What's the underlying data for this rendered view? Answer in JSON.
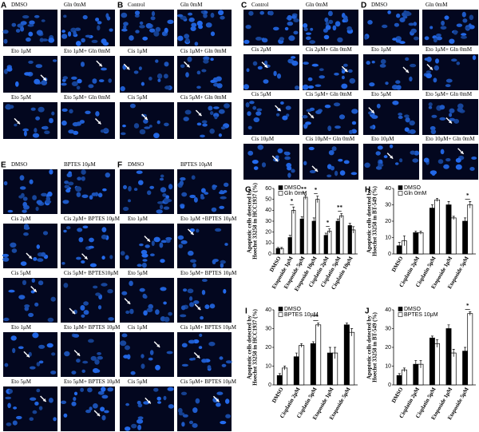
{
  "figure": {
    "image_panels": [
      {
        "letter": "A",
        "labels": [
          "DMSO",
          "Gln 0mM",
          "Eto 1μM",
          "Eto 1μM+ Gln 0mM",
          "Eto 5μM",
          "Eto 5μM+ Gln 0mM"
        ]
      },
      {
        "letter": "B",
        "labels": [
          "Control",
          "Gln 0mM",
          "Cis 1μM",
          "Cis 1μM+ Gln 0mM",
          "Cis 5μM",
          "Cis 5μM+ Gln 0mM"
        ]
      },
      {
        "letter": "C",
        "labels": [
          "Control",
          "Gln 0mM",
          "Cis 2μM",
          "Cis 2μM+ Gln 0mM",
          "Cis 5μM",
          "Cis 5μM+ Gln 0mM",
          "Cis 10μM",
          "Cis 10μM+ Gln 0mM"
        ]
      },
      {
        "letter": "D",
        "labels": [
          "DMSO",
          "Gln 0mM",
          "Eto 1μM",
          "Eto 1μM+ Gln 0mM",
          "Eto 5μM",
          "Eto 5μM+ Gln 0mM",
          "Eto 10μM",
          "Eto 10μM+ Gln 0mM"
        ]
      },
      {
        "letter": "E",
        "labels": [
          "DMSO",
          "BPTES 10μM",
          "Cis 2μM",
          "Cis 2μM+ BPTES 10μM",
          "Cis 5μM",
          "Cis 5μM+ BPTES10μM",
          "Eto 1μM",
          "Eto 1μM+ BPTES 10μM",
          "Eto 5μM",
          "Eto 5μM+ BPTES 10μM"
        ]
      },
      {
        "letter": "F",
        "labels": [
          "DMSO",
          "BPTES 10μM",
          "Eto 1μM",
          "Eto 1μM +BPTES 10μM",
          "Eto 5μM",
          "Eto 5μM+ BPTES 10μM",
          "Cis 1μM",
          "Cis 1μM+ BPTES 10μM",
          "Cis 5μM",
          "Cis 5μM+ BPTES 10μM"
        ]
      }
    ]
  },
  "chart_data": [
    {
      "type": "bar",
      "panel": "G",
      "ylabel": [
        "Apoptotic cells detected by",
        "Hoechst 33258 in HCC1937 (%)"
      ],
      "categories": [
        "DMSO",
        "Etoposide 1μM",
        "Etoposide 5μM",
        "Etoposide 10μM",
        "Cisplatin 2μM",
        "Cisplatin 5μM",
        "Cisplatin 10μM"
      ],
      "series": [
        {
          "name": "DMSO",
          "color": "#000000",
          "values": [
            5,
            15,
            32,
            30,
            17,
            30,
            26
          ],
          "errors": [
            1,
            2,
            2,
            3,
            2,
            2,
            2
          ]
        },
        {
          "name": "Gln 0mM",
          "color": "#ffffff",
          "values": [
            5,
            40,
            52,
            50,
            21,
            35,
            22
          ],
          "errors": [
            1,
            3,
            2,
            3,
            2,
            2,
            3
          ]
        }
      ],
      "annotations": [
        "*",
        "**",
        "*",
        "*",
        "**"
      ],
      "ylim": [
        0,
        60
      ],
      "yticks": [
        0,
        10,
        20,
        30,
        40,
        50,
        60
      ]
    },
    {
      "type": "bar",
      "panel": "H",
      "ylabel": [
        "Apoptotic cells detected by",
        "Hoechst 33258 in BT-549 (%)"
      ],
      "categories": [
        "DMSO",
        "Cisplatin 2μM",
        "Cisplatin 5μM",
        "Etoposide 1μM",
        "Etoposide 5μM"
      ],
      "series": [
        {
          "name": "DMSO",
          "color": "#000000",
          "values": [
            5,
            13,
            28,
            30,
            20
          ],
          "errors": [
            2,
            1,
            2,
            2,
            2
          ]
        },
        {
          "name": "Gln 0mM",
          "color": "#ffffff",
          "values": [
            8,
            13,
            33,
            22,
            30
          ],
          "errors": [
            3,
            1,
            1,
            1,
            2
          ]
        }
      ],
      "annotations": [
        "*"
      ],
      "ylim": [
        0,
        40
      ],
      "yticks": [
        0,
        10,
        20,
        30,
        40
      ]
    },
    {
      "type": "bar",
      "panel": "I",
      "ylabel": [
        "Apoptotic cells detected by",
        "Hoechst 33258 in HCC1937 (%)"
      ],
      "categories": [
        "DMSO",
        "Cisplatin 2μM",
        "Cisplatin 5μM",
        "Etoposide 1μM",
        "Etoposide 5μM"
      ],
      "series": [
        {
          "name": "DMSO",
          "color": "#000000",
          "values": [
            5,
            15,
            22,
            17,
            32
          ],
          "errors": [
            1,
            2,
            1,
            3,
            1
          ]
        },
        {
          "name": "BPTES 10μM",
          "color": "#ffffff",
          "values": [
            9,
            21,
            32,
            17,
            28
          ],
          "errors": [
            1,
            1,
            1,
            3,
            2
          ]
        }
      ],
      "annotations": [
        "**"
      ],
      "ylim": [
        0,
        40
      ],
      "yticks": [
        0,
        10,
        20,
        30,
        40
      ]
    },
    {
      "type": "bar",
      "panel": "J",
      "ylabel": [
        "Apoptotic cells detected by",
        "Hoechst 33258 in BT-549 (%)"
      ],
      "categories": [
        "DMSO",
        "Cisplatin 2μM",
        "Cisplatin 5μM",
        "Etoposide 1μM",
        "Etoposide 5μM"
      ],
      "series": [
        {
          "name": "DMSO",
          "color": "#000000",
          "values": [
            5,
            11,
            25,
            30,
            18
          ],
          "errors": [
            1,
            2,
            1,
            2,
            2
          ]
        },
        {
          "name": "BPTES 10μM",
          "color": "#ffffff",
          "values": [
            8,
            11,
            22,
            17,
            38
          ],
          "errors": [
            1,
            2,
            2,
            2,
            1
          ]
        }
      ],
      "annotations": [
        "*"
      ],
      "ylim": [
        0,
        40
      ],
      "yticks": [
        0,
        10,
        20,
        30,
        40
      ]
    }
  ]
}
